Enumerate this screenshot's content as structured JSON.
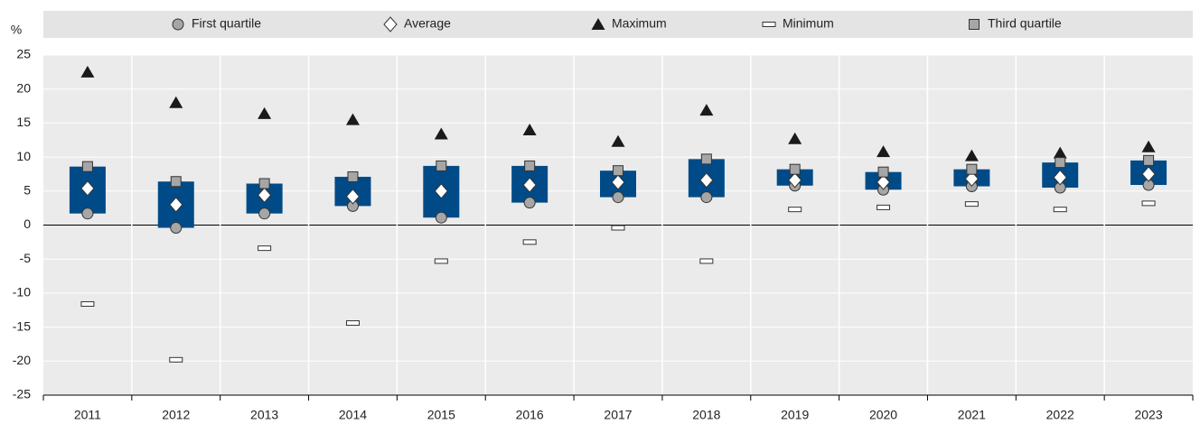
{
  "chart_data": {
    "type": "box",
    "ylabel": "%",
    "categories": [
      "2011",
      "2012",
      "2013",
      "2014",
      "2015",
      "2016",
      "2017",
      "2018",
      "2019",
      "2020",
      "2021",
      "2022",
      "2023"
    ],
    "box_color": "#004b87",
    "box_lower": "First quartile",
    "box_upper": "Third quartile",
    "series": [
      {
        "name": "First quartile",
        "marker": "circle",
        "color": "#a6a6a6",
        "values": [
          1.7,
          -0.4,
          1.7,
          2.8,
          1.1,
          3.3,
          4.1,
          4.1,
          5.8,
          5.2,
          5.7,
          5.5,
          5.9
        ]
      },
      {
        "name": "Average",
        "marker": "diamond",
        "color": "#ffffff",
        "values": [
          5.4,
          3.0,
          4.4,
          4.2,
          5.0,
          5.9,
          6.3,
          6.6,
          6.6,
          6.3,
          6.8,
          7.0,
          7.5
        ]
      },
      {
        "name": "Maximum",
        "marker": "triangle",
        "color": "#1a1a1a",
        "values": [
          22.5,
          18.0,
          16.4,
          15.5,
          13.4,
          14.0,
          12.3,
          16.9,
          12.7,
          10.8,
          10.2,
          10.6,
          11.5
        ]
      },
      {
        "name": "Minimum",
        "marker": "dash",
        "color": "#ffffff",
        "values": [
          -11.6,
          -19.8,
          -3.4,
          -14.4,
          -5.3,
          -2.5,
          -0.4,
          -5.3,
          2.3,
          2.6,
          3.1,
          2.3,
          3.2
        ]
      },
      {
        "name": "Third quartile",
        "marker": "square",
        "color": "#a6a6a6",
        "values": [
          8.6,
          6.4,
          6.1,
          7.1,
          8.7,
          8.7,
          8.0,
          9.7,
          8.2,
          7.8,
          8.2,
          9.2,
          9.5
        ]
      }
    ],
    "ylim": [
      -25,
      25
    ],
    "yticks": [
      -25,
      -20,
      -15,
      -10,
      -5,
      0,
      5,
      10,
      15,
      20,
      25
    ],
    "grid": true
  }
}
